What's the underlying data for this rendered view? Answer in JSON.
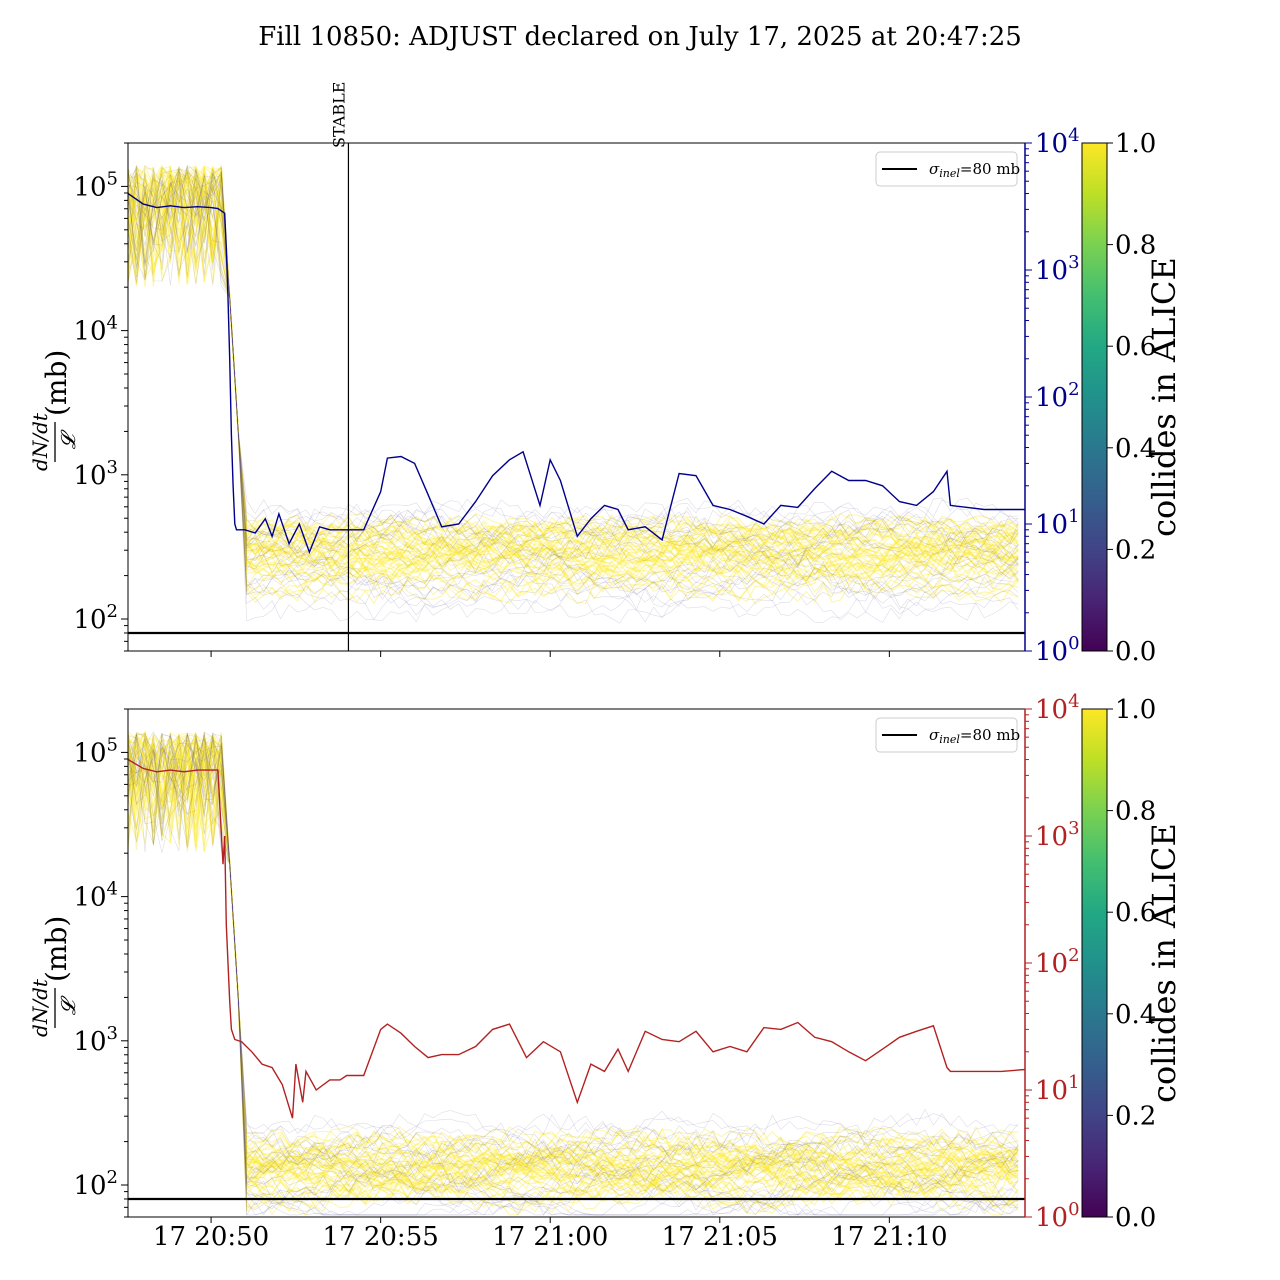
{
  "title": "Fill 10850: ADJUST declared on July 17, 2025 at 20:47:25",
  "chart_data": [
    {
      "type": "line",
      "panel": "top",
      "ylabel_numerator": "dN/dt",
      "ylabel_denominator": "𝓛",
      "ylabel_unit": "(mb)",
      "yscale": "log",
      "ylim": [
        60,
        200000
      ],
      "yticks": [
        {
          "v": 100,
          "b": "10",
          "e": "2"
        },
        {
          "v": 1000,
          "b": "10",
          "e": "3"
        },
        {
          "v": 10000,
          "b": "10",
          "e": "4"
        },
        {
          "v": 100000,
          "b": "10",
          "e": "5"
        }
      ],
      "y2scale": "log",
      "y2lim": [
        1,
        10000
      ],
      "y2ticks": [
        {
          "v": 1,
          "b": "10",
          "e": "0"
        },
        {
          "v": 10,
          "b": "10",
          "e": "1"
        },
        {
          "v": 100,
          "b": "10",
          "e": "2"
        },
        {
          "v": 1000,
          "b": "10",
          "e": "3"
        },
        {
          "v": 10000,
          "b": "10",
          "e": "4"
        }
      ],
      "y2color": "#00008b",
      "xlim_minutes": [
        -2.45,
        24.0
      ],
      "xticks_minutes": [
        0,
        5,
        10,
        15,
        20
      ],
      "xtick_labels_shown": false,
      "legend": {
        "entry_sym": "σ",
        "entry_sub": "inel",
        "entry_tail": "=80 mb",
        "placement": "upper right"
      },
      "hline_value_mb": 80,
      "vline": {
        "x_minutes": 4.05,
        "label": "STABLE"
      },
      "grid": false,
      "series_right": {
        "color": "#00008b",
        "x_minutes": [
          -2.45,
          -2.0,
          -1.6,
          -1.2,
          -0.8,
          -0.4,
          0.0,
          0.2,
          0.4,
          0.45,
          0.5,
          0.55,
          0.6,
          0.65,
          0.7,
          0.75,
          0.8,
          1.0,
          1.3,
          1.6,
          1.8,
          2.0,
          2.3,
          2.6,
          2.9,
          3.2,
          3.5,
          4.0,
          4.5,
          5.0,
          5.2,
          5.6,
          6.0,
          6.4,
          6.8,
          7.3,
          7.8,
          8.3,
          8.8,
          9.2,
          9.7,
          10.0,
          10.3,
          10.8,
          11.2,
          11.6,
          12.0,
          12.3,
          12.8,
          13.3,
          13.8,
          14.3,
          14.8,
          15.3,
          15.8,
          16.3,
          16.8,
          17.3,
          17.8,
          18.3,
          18.8,
          19.3,
          19.8,
          20.3,
          20.8,
          21.3,
          21.7,
          21.8,
          22.3,
          22.8,
          23.3,
          24.0
        ],
        "y": [
          4000,
          3300,
          3100,
          3200,
          3100,
          3150,
          3100,
          3050,
          2800,
          1500,
          600,
          200,
          50,
          20,
          10,
          9,
          9,
          9,
          8.5,
          11,
          8,
          12,
          7,
          10,
          6,
          9.5,
          9,
          9,
          9,
          18,
          33,
          34,
          30,
          17,
          9.5,
          10,
          15,
          24,
          32,
          37,
          14,
          32,
          22,
          8,
          11,
          14,
          13,
          9,
          9.5,
          7.5,
          25,
          24,
          14,
          13,
          11.5,
          10,
          14,
          13.5,
          19,
          26,
          22,
          22,
          20,
          15,
          14,
          18,
          26,
          14,
          13.5,
          13,
          13,
          13
        ]
      },
      "colorbar": {
        "label": "collides in ALICE",
        "min": 0.0,
        "max": 1.0,
        "ticks": [
          "0.0",
          "0.2",
          "0.4",
          "0.6",
          "0.8",
          "1.0"
        ]
      }
    },
    {
      "type": "line",
      "panel": "bottom",
      "ylabel_numerator": "dN/dt",
      "ylabel_denominator": "𝓛",
      "ylabel_unit": "(mb)",
      "yscale": "log",
      "ylim": [
        60,
        200000
      ],
      "yticks": [
        {
          "v": 100,
          "b": "10",
          "e": "2"
        },
        {
          "v": 1000,
          "b": "10",
          "e": "3"
        },
        {
          "v": 10000,
          "b": "10",
          "e": "4"
        },
        {
          "v": 100000,
          "b": "10",
          "e": "5"
        }
      ],
      "y2scale": "log",
      "y2lim": [
        1,
        10000
      ],
      "y2ticks": [
        {
          "v": 1,
          "b": "10",
          "e": "0"
        },
        {
          "v": 10,
          "b": "10",
          "e": "1"
        },
        {
          "v": 100,
          "b": "10",
          "e": "2"
        },
        {
          "v": 1000,
          "b": "10",
          "e": "3"
        },
        {
          "v": 10000,
          "b": "10",
          "e": "4"
        }
      ],
      "y2color": "#b22222",
      "xlim_minutes": [
        -2.45,
        24.0
      ],
      "xticks_minutes": [
        0,
        5,
        10,
        15,
        20
      ],
      "xtick_labels": [
        "17 20:50",
        "17 20:55",
        "17 21:00",
        "17 21:05",
        "17 21:10"
      ],
      "legend": {
        "entry_sym": "σ",
        "entry_sub": "inel",
        "entry_tail": "=80 mb",
        "placement": "upper right"
      },
      "hline_value_mb": 80,
      "grid": false,
      "series_right": {
        "color": "#b22222",
        "x_minutes": [
          -2.45,
          -2.0,
          -1.6,
          -1.2,
          -0.8,
          -0.4,
          0.0,
          0.2,
          0.35,
          0.4,
          0.45,
          0.5,
          0.55,
          0.6,
          0.7,
          0.9,
          1.2,
          1.5,
          1.8,
          2.1,
          2.4,
          2.5,
          2.7,
          2.8,
          3.1,
          3.5,
          3.8,
          4.0,
          4.5,
          5.0,
          5.2,
          5.6,
          6.0,
          6.4,
          6.8,
          7.3,
          7.8,
          8.3,
          8.8,
          9.3,
          9.8,
          10.3,
          10.8,
          11.2,
          11.6,
          12.0,
          12.3,
          12.8,
          13.3,
          13.8,
          14.3,
          14.8,
          15.3,
          15.8,
          16.3,
          16.8,
          17.3,
          17.8,
          18.3,
          18.8,
          19.3,
          19.8,
          20.3,
          20.8,
          21.3,
          21.7,
          21.8,
          22.3,
          22.8,
          23.3,
          24.0
        ],
        "y": [
          4000,
          3400,
          3200,
          3300,
          3200,
          3300,
          3300,
          3300,
          600,
          1000,
          200,
          100,
          50,
          30,
          25,
          24,
          20,
          16,
          15,
          11,
          6,
          16,
          8,
          14,
          10,
          12,
          12,
          13,
          13,
          30,
          33,
          28,
          22,
          18,
          19,
          19,
          22,
          30,
          33,
          18,
          24,
          20,
          8,
          16,
          14,
          21,
          14,
          29,
          25,
          24,
          29,
          20,
          22,
          20,
          31,
          30,
          34,
          26,
          24,
          20,
          17,
          21,
          26,
          29,
          32,
          15,
          14,
          14,
          14,
          14,
          14.5
        ]
      },
      "colorbar": {
        "label": "collides in ALICE",
        "min": 0.0,
        "max": 1.0,
        "ticks": [
          "0.0",
          "0.2",
          "0.4",
          "0.6",
          "0.8",
          "1.0"
        ]
      }
    }
  ]
}
